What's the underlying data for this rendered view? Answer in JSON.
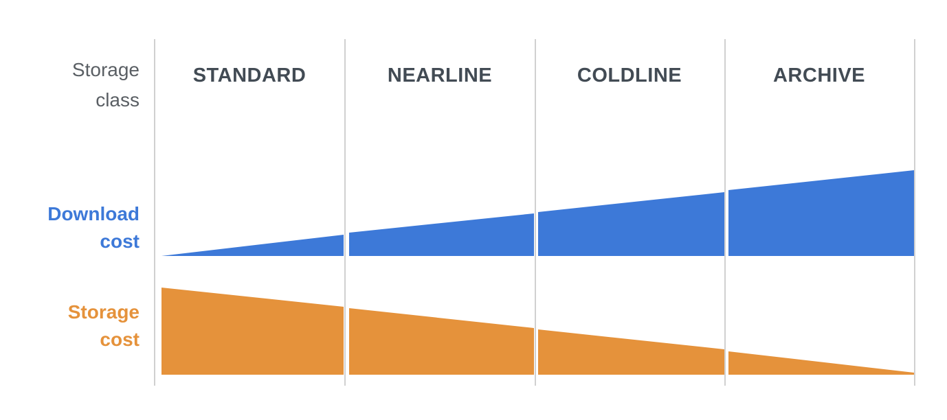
{
  "row_header": "Storage class",
  "columns": [
    "STANDARD",
    "NEARLINE",
    "COLDLINE",
    "ARCHIVE"
  ],
  "rows": [
    "Download cost",
    "Storage cost"
  ]
}
